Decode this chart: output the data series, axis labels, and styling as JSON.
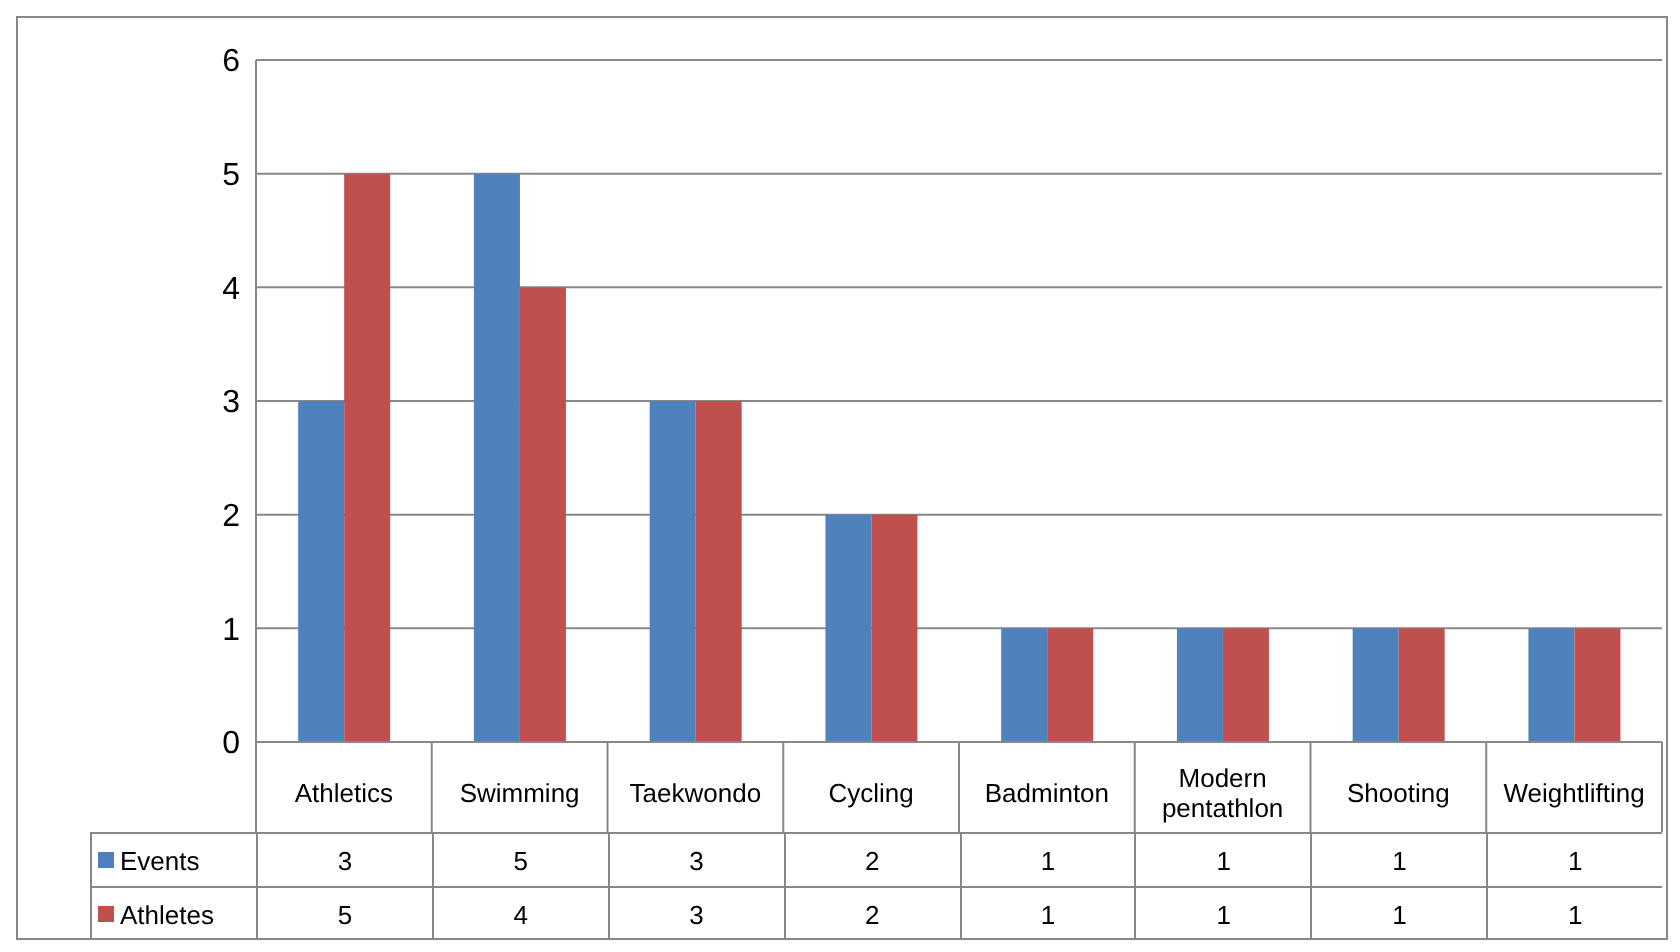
{
  "chart_data": {
    "type": "bar",
    "categories": [
      "Athletics",
      "Swimming",
      "Taekwondo",
      "Cycling",
      "Badminton",
      "Modern pentathlon",
      "Shooting",
      "Weightlifting"
    ],
    "series": [
      {
        "name": "Events",
        "color": "#4f81bd",
        "values": [
          3,
          5,
          3,
          2,
          1,
          1,
          1,
          1
        ]
      },
      {
        "name": "Athletes",
        "color": "#c0504d",
        "values": [
          5,
          4,
          3,
          2,
          1,
          1,
          1,
          1
        ]
      }
    ],
    "ylim": [
      0,
      6
    ],
    "yticks": [
      0,
      1,
      2,
      3,
      4,
      5,
      6
    ],
    "grid": "y",
    "legend": "bottom",
    "data_labels": true
  }
}
